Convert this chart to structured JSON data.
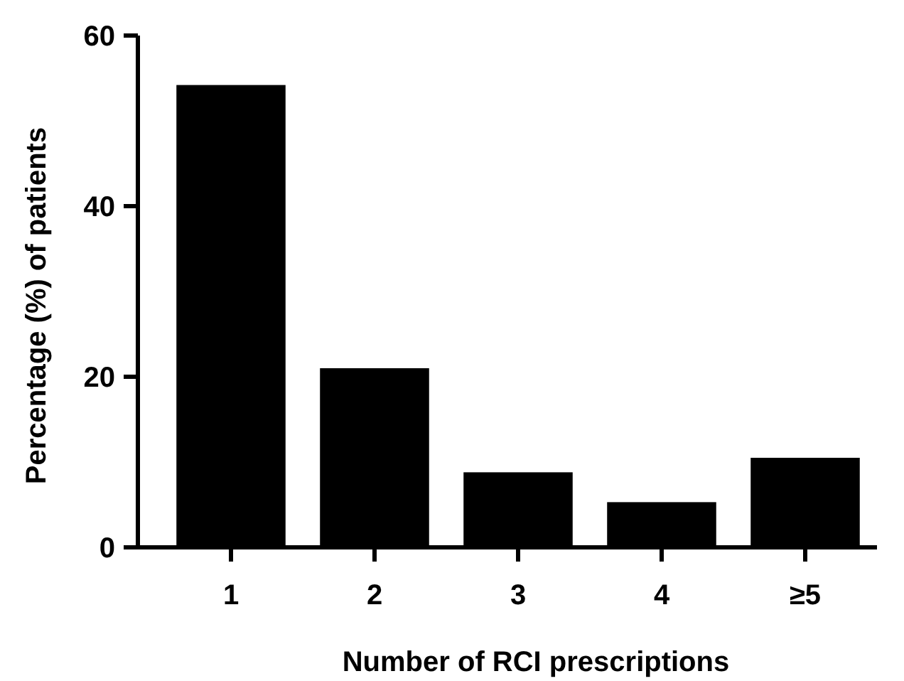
{
  "chart_data": {
    "type": "bar",
    "xlabel": "Number of RCI prescriptions",
    "ylabel": "Percentage (%) of patients",
    "categories": [
      "1",
      "2",
      "3",
      "4",
      "≥5"
    ],
    "values": [
      54.2,
      21,
      8.8,
      5.3,
      10.5
    ],
    "color": "#000000",
    "ylim": [
      0,
      60
    ],
    "yticks": [
      0,
      20,
      40,
      60
    ],
    "grid": false
  }
}
